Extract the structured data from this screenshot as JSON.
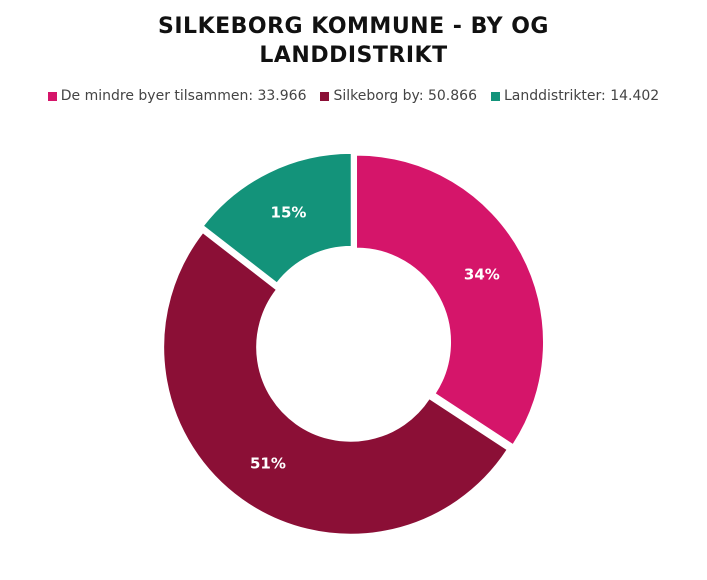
{
  "chart_data": {
    "type": "pie",
    "title_line1": "SILKEBORG KOMMUNE - BY OG",
    "title_line2": "LANDDISTRIKT",
    "legend_position": "top",
    "series": [
      {
        "name": "De mindre byer tilsammen",
        "legend": "De mindre byer tilsammen: 33.966",
        "value": 33966,
        "pct_label": "34%",
        "color": "#D5156A"
      },
      {
        "name": "Silkeborg by",
        "legend": "Silkeborg by: 50.866",
        "value": 50866,
        "pct_label": "51%",
        "color": "#8B0F36"
      },
      {
        "name": "Landdistrikter",
        "legend": "Landdistrikter: 14.402",
        "value": 14402,
        "pct_label": "15%",
        "color": "#13937A"
      }
    ]
  }
}
